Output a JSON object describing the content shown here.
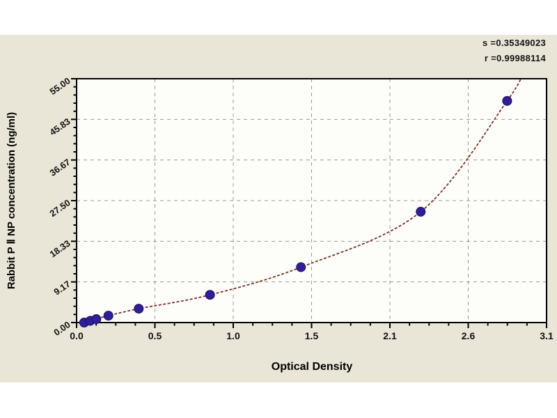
{
  "stats": {
    "s_label": "s =0.35349023",
    "r_label": "r =0.99988114"
  },
  "colors": {
    "panel_bg": "#e9e6d7",
    "plot_bg": "#fdfdfa",
    "grid": "#9a9a94",
    "axis": "#000000",
    "marker_fill": "#2f1e99",
    "marker_stroke": "#1a1060",
    "curve": "#7b332a",
    "text": "#111111"
  },
  "chart_data": {
    "type": "scatter",
    "title": "",
    "xlabel": "Optical Density",
    "ylabel": "Rabbit P Ⅱ NP concentration (ng/ml)",
    "xlim": [
      0,
      3.1
    ],
    "ylim": [
      0,
      55
    ],
    "x_tick_labels": [
      "0.0",
      "0.5",
      "1.0",
      "1.5",
      "2.1",
      "2.6",
      "3.1"
    ],
    "y_tick_labels": [
      "0.00",
      "9.17",
      "18.33",
      "27.50",
      "36.67",
      "45.83",
      "55.00"
    ],
    "x_minor_per_major": 4,
    "y_minor_per_major": 5,
    "grid": "dashed",
    "legend": "none",
    "series": [
      {
        "name": "standard-points",
        "marker": "circle",
        "points": [
          {
            "x": 0.05,
            "y": 0.0
          },
          {
            "x": 0.09,
            "y": 0.39
          },
          {
            "x": 0.13,
            "y": 0.78
          },
          {
            "x": 0.21,
            "y": 1.56
          },
          {
            "x": 0.41,
            "y": 3.13
          },
          {
            "x": 0.88,
            "y": 6.25
          },
          {
            "x": 1.48,
            "y": 12.5
          },
          {
            "x": 2.27,
            "y": 25.0
          },
          {
            "x": 2.84,
            "y": 50.0
          }
        ]
      }
    ],
    "fit_curve": {
      "style": "dashed",
      "starts_at": {
        "x": 0.02,
        "y": -0.4
      },
      "extends_to": {
        "x": 2.95,
        "y": 57
      },
      "s": "0.35349023",
      "r": "0.99988114"
    }
  }
}
